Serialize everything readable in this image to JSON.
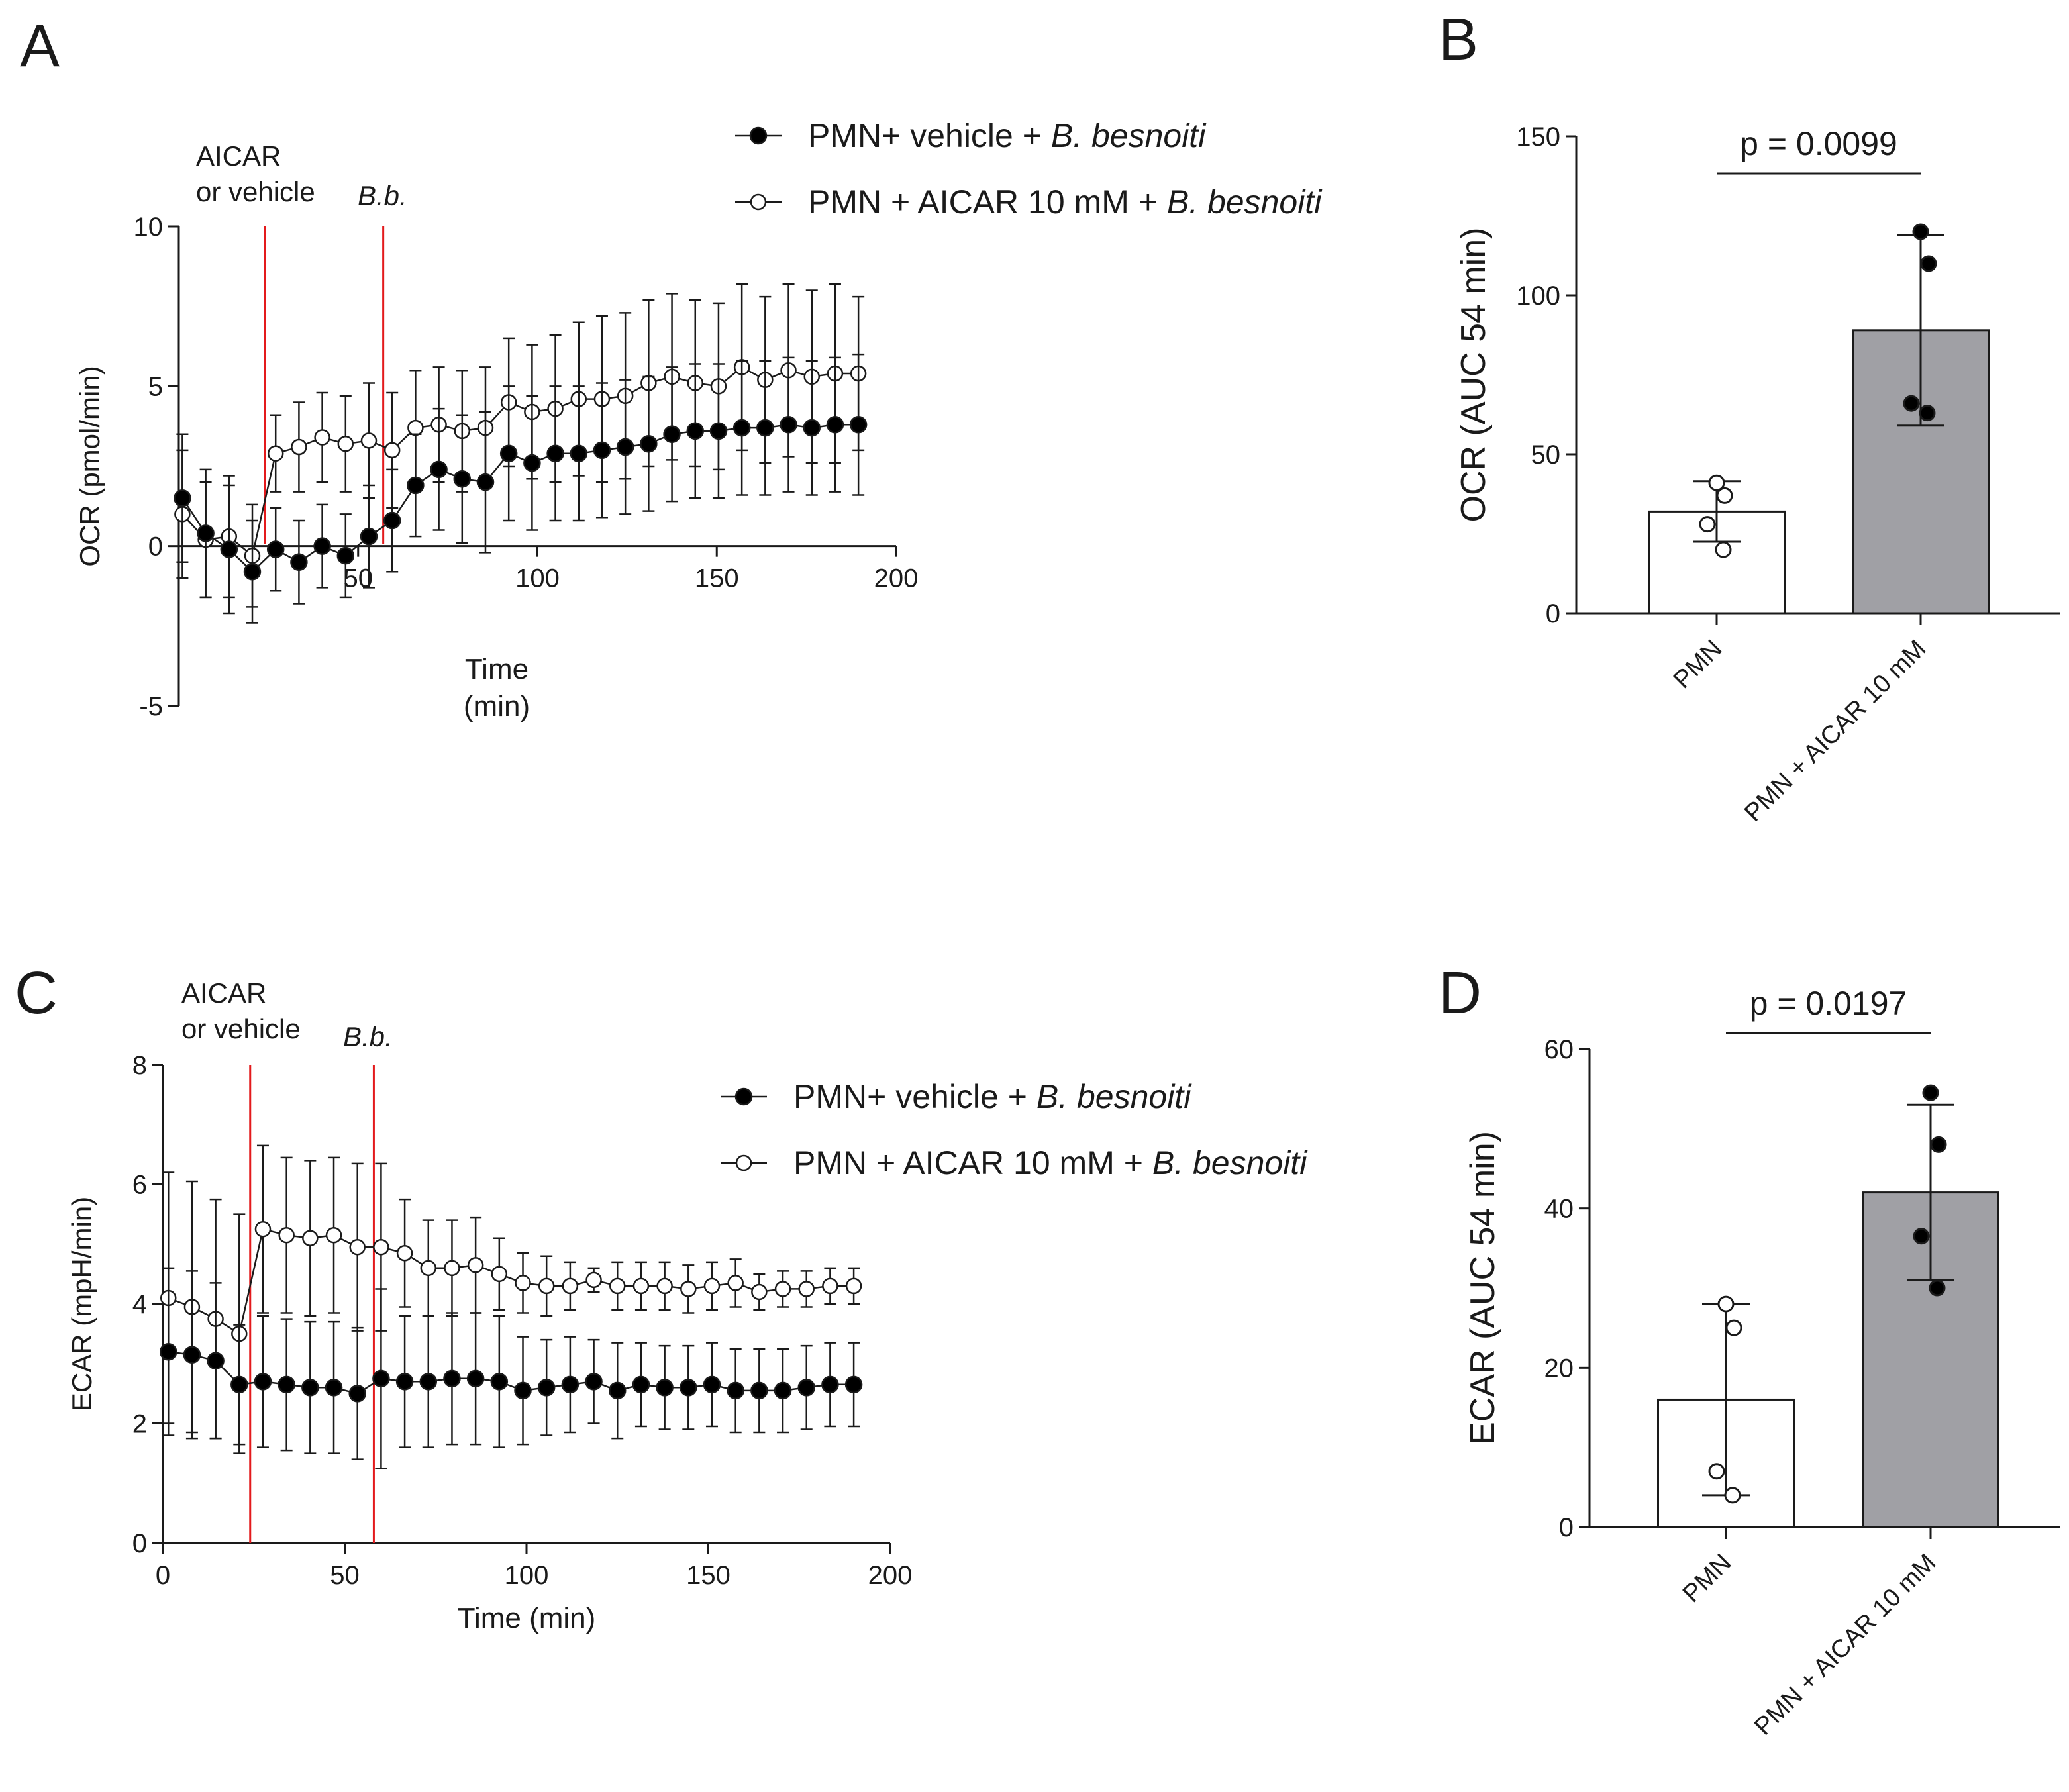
{
  "colors": {
    "closed_marker": "#000000",
    "open_marker_fill": "#ffffff",
    "event_line": "#e31a1c",
    "bar_pmn": "#ffffff",
    "bar_aicar": "#a0a0a5"
  },
  "chart_data": [
    {
      "panel": "A",
      "type": "line",
      "xlabel_line1": "Time",
      "xlabel_line2": "(min)",
      "ylabel": "OCR (pmol/min)",
      "xlim": [
        0,
        200
      ],
      "ylim": [
        -5,
        10
      ],
      "xticks": [
        "50",
        "100",
        "150",
        "200"
      ],
      "yticks": [
        "-5",
        "0",
        "5",
        "10"
      ],
      "annotation_1_line1": "AICAR",
      "annotation_1_line2": "or vehicle",
      "annotation_2": "B.b.",
      "event_lines": [
        24,
        57
      ],
      "legend_prefix_1": "PMN+ vehicle + ",
      "legend_italic_1": "B. besnoiti",
      "legend_prefix_2": "PMN + AICAR 10 mM + ",
      "legend_italic_2": "B. besnoiti",
      "x": [
        1,
        7.5,
        14,
        20.5,
        27,
        33.5,
        40,
        46.5,
        53,
        59.5,
        66,
        72.5,
        79,
        85.5,
        92,
        98.5,
        105,
        111.5,
        118,
        124.5,
        131,
        137.5,
        144,
        150.5,
        157,
        163.5,
        170,
        176.5,
        183,
        189.5
      ],
      "series": [
        {
          "name": "PMN+ vehicle + B. besnoiti",
          "marker": "closed",
          "values": [
            1.5,
            0.4,
            -0.1,
            -0.8,
            -0.1,
            -0.5,
            0.0,
            -0.3,
            0.3,
            0.8,
            1.9,
            2.4,
            2.1,
            2.0,
            2.9,
            2.6,
            2.9,
            2.9,
            3.0,
            3.1,
            3.2,
            3.5,
            3.6,
            3.6,
            3.7,
            3.7,
            3.8,
            3.7,
            3.8,
            3.8
          ],
          "errors": [
            2.0,
            2.0,
            2.0,
            1.6,
            1.3,
            1.3,
            1.3,
            1.3,
            1.6,
            1.6,
            1.6,
            1.9,
            2.0,
            2.2,
            2.1,
            2.1,
            2.1,
            2.1,
            2.1,
            2.1,
            2.1,
            2.1,
            2.1,
            2.1,
            2.1,
            2.1,
            2.1,
            2.1,
            2.1,
            2.2
          ]
        },
        {
          "name": "PMN + AICAR 10 mM + B. besnoiti",
          "marker": "open",
          "values": [
            1.0,
            0.2,
            0.3,
            -0.3,
            2.9,
            3.1,
            3.4,
            3.2,
            3.3,
            3.0,
            3.7,
            3.8,
            3.6,
            3.7,
            4.5,
            4.2,
            4.3,
            4.6,
            4.6,
            4.7,
            5.1,
            5.3,
            5.1,
            5.0,
            5.6,
            5.2,
            5.5,
            5.3,
            5.4,
            5.4
          ],
          "errors": [
            2.0,
            1.8,
            1.9,
            1.6,
            1.2,
            1.4,
            1.4,
            1.5,
            1.8,
            1.8,
            1.8,
            1.8,
            1.9,
            1.9,
            2.0,
            2.1,
            2.3,
            2.4,
            2.6,
            2.6,
            2.6,
            2.6,
            2.6,
            2.6,
            2.6,
            2.6,
            2.7,
            2.7,
            2.8,
            2.4
          ]
        }
      ]
    },
    {
      "panel": "B",
      "type": "bar",
      "ylabel": "OCR (AUC 54 min)",
      "ylim": [
        0,
        150
      ],
      "yticks": [
        "0",
        "50",
        "100",
        "150"
      ],
      "categories": [
        "PMN",
        "PMN + AICAR 10 mM"
      ],
      "values": [
        32,
        89
      ],
      "sd": [
        9.5,
        30
      ],
      "points": [
        [
          41,
          37,
          28,
          20
        ],
        [
          120,
          110,
          66,
          63
        ]
      ],
      "pvalue": "p = 0.0099"
    },
    {
      "panel": "C",
      "type": "line",
      "xlabel": "Time (min)",
      "ylabel": "ECAR (mpH/min)",
      "xlim": [
        0,
        200
      ],
      "ylim": [
        0,
        8
      ],
      "xticks": [
        "0",
        "50",
        "100",
        "150",
        "200"
      ],
      "yticks": [
        "0",
        "2",
        "4",
        "6",
        "8"
      ],
      "annotation_1_line1": "AICAR",
      "annotation_1_line2": "or vehicle",
      "annotation_2": "B.b.",
      "event_lines": [
        24,
        58
      ],
      "legend_prefix_1": "PMN+ vehicle + ",
      "legend_italic_1": "B. besnoiti",
      "legend_prefix_2": "PMN + AICAR 10 mM + ",
      "legend_italic_2": "B. besnoiti",
      "x": [
        1.5,
        8,
        14.5,
        21,
        27.5,
        34,
        40.5,
        47,
        53.5,
        60,
        66.5,
        73,
        79.5,
        86,
        92.5,
        99,
        105.5,
        112,
        118.5,
        125,
        131.5,
        138,
        144.5,
        151,
        157.5,
        164,
        170.5,
        177,
        183.5,
        190
      ],
      "series": [
        {
          "name": "PMN+ vehicle + B. besnoiti",
          "marker": "closed",
          "values": [
            3.2,
            3.15,
            3.05,
            2.65,
            2.7,
            2.65,
            2.6,
            2.6,
            2.5,
            2.75,
            2.7,
            2.7,
            2.75,
            2.75,
            2.7,
            2.55,
            2.6,
            2.65,
            2.7,
            2.55,
            2.65,
            2.6,
            2.6,
            2.65,
            2.55,
            2.55,
            2.55,
            2.6,
            2.65,
            2.65
          ],
          "errors": [
            1.4,
            1.4,
            1.3,
            1.0,
            1.1,
            1.1,
            1.1,
            1.1,
            1.1,
            1.5,
            1.1,
            1.1,
            1.1,
            1.1,
            1.1,
            0.9,
            0.8,
            0.8,
            0.7,
            0.8,
            0.7,
            0.7,
            0.7,
            0.7,
            0.7,
            0.7,
            0.7,
            0.7,
            0.7,
            0.7
          ]
        },
        {
          "name": "PMN + AICAR 10 mM + B. besnoiti",
          "marker": "open",
          "values": [
            4.1,
            3.95,
            3.75,
            3.5,
            5.25,
            5.15,
            5.1,
            5.15,
            4.95,
            4.95,
            4.85,
            4.6,
            4.6,
            4.65,
            4.5,
            4.35,
            4.3,
            4.3,
            4.4,
            4.3,
            4.3,
            4.3,
            4.25,
            4.3,
            4.35,
            4.2,
            4.25,
            4.25,
            4.3,
            4.3
          ],
          "errors": [
            2.1,
            2.1,
            2.0,
            2.0,
            1.4,
            1.3,
            1.3,
            1.3,
            1.4,
            1.4,
            0.9,
            0.8,
            0.8,
            0.8,
            0.6,
            0.5,
            0.5,
            0.4,
            0.2,
            0.4,
            0.4,
            0.4,
            0.4,
            0.4,
            0.4,
            0.3,
            0.3,
            0.3,
            0.3,
            0.3
          ]
        }
      ]
    },
    {
      "panel": "D",
      "type": "bar",
      "ylabel": "ECAR (AUC 54 min)",
      "ylim": [
        0,
        60
      ],
      "yticks": [
        "0",
        "20",
        "40",
        "60"
      ],
      "categories": [
        "PMN",
        "PMN + AICAR 10 mM"
      ],
      "values": [
        16,
        42
      ],
      "sd": [
        12,
        11
      ],
      "points": [
        [
          28,
          25,
          7,
          4
        ],
        [
          54.5,
          48,
          36.5,
          30
        ]
      ],
      "pvalue": "p = 0.0197"
    }
  ]
}
